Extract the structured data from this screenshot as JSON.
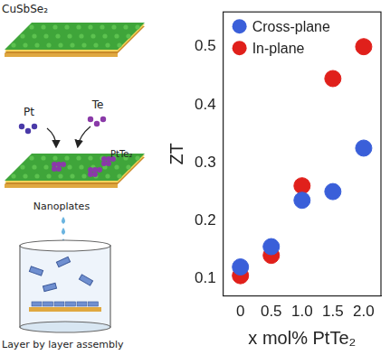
{
  "chart_data": {
    "type": "scatter",
    "x_label": "x mol% PtTe₂",
    "y_label": "ZT",
    "series": [
      {
        "name": "Cross-plane",
        "color": "#3a5fd9",
        "marker": "circle",
        "x": [
          0,
          0.5,
          1.0,
          1.5,
          2.0
        ],
        "values": [
          0.12,
          0.155,
          0.235,
          0.25,
          0.325
        ]
      },
      {
        "name": "In-plane",
        "color": "#e0201b",
        "marker": "circle",
        "x": [
          0,
          0.5,
          1.0,
          1.5,
          2.0
        ],
        "values": [
          0.105,
          0.14,
          0.26,
          0.445,
          0.5
        ]
      }
    ],
    "xlim": [
      -0.28,
      2.28
    ],
    "xticks": [
      0,
      0.5,
      {
        "value": 1.0,
        "label": "1.0"
      },
      1.5,
      {
        "value": 2.0,
        "label": "2.0"
      }
    ],
    "ylim": [
      0.07,
      0.56
    ],
    "yticks": [
      0.1,
      0.2,
      0.3,
      0.4,
      0.5
    ],
    "grid": false,
    "legend": "upper left"
  },
  "schematic": {
    "layer_label": "CuSbSe₂",
    "precursors": [
      "Pt",
      "Te"
    ],
    "product_label": "PtTe₂",
    "nanoplates_label": "Nanoplates",
    "assembly_label": "Layer by layer assembly"
  }
}
